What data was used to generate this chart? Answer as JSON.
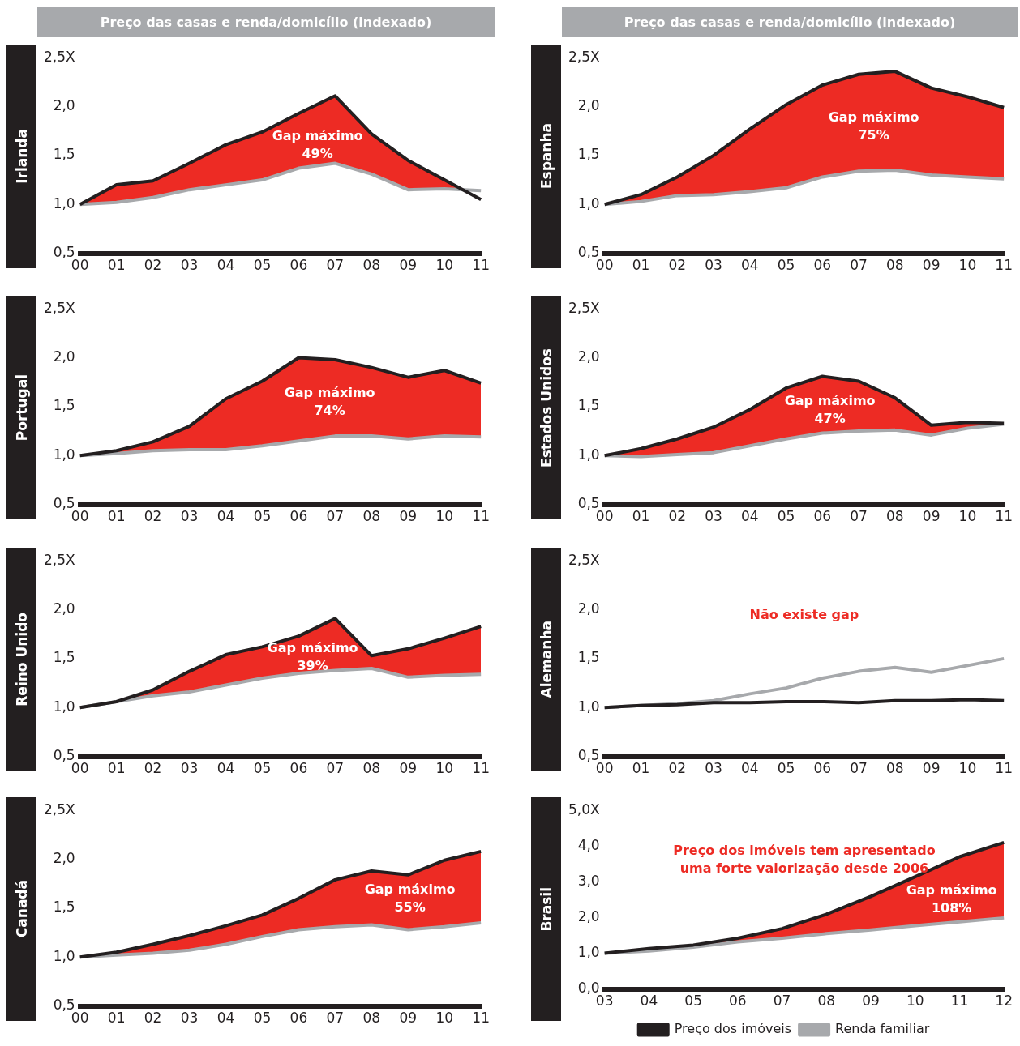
{
  "chart_data": [
    {
      "type": "line",
      "title": "Preço das casas e renda/domicílio (indexado)",
      "ylabel": "Irlanda",
      "categories": [
        "00",
        "01",
        "02",
        "03",
        "04",
        "05",
        "06",
        "07",
        "08",
        "09",
        "10",
        "11"
      ],
      "ylim": [
        0.5,
        2.5
      ],
      "yticks": [
        {
          "value": 0.5,
          "label": "0,5"
        },
        {
          "value": 1,
          "label": "1,0"
        },
        {
          "value": 1.5,
          "label": "1,5"
        },
        {
          "value": 2,
          "label": "2,0"
        },
        {
          "value": 2.5,
          "label": "2,5X"
        }
      ],
      "series": [
        {
          "type": "line",
          "color": "#231f20",
          "values": [
            1.0,
            1.2,
            1.24,
            1.42,
            1.61,
            1.74,
            1.93,
            2.11,
            1.72,
            1.45,
            1.25,
            1.05
          ],
          "lower": [
            1.0,
            1.02,
            1.07,
            1.15,
            1.2,
            1.25,
            1.37,
            1.42,
            1.31,
            1.15,
            1.16,
            1.14
          ],
          "upper": [
            1.0,
            1.2,
            1.24,
            1.42,
            1.61,
            1.74,
            1.93,
            2.11,
            1.72,
            1.45,
            1.25,
            1.05
          ]
        },
        {
          "type": "line",
          "color": "#a7a9ac",
          "values": [
            1.0,
            1.02,
            1.07,
            1.15,
            1.2,
            1.25,
            1.37,
            1.42,
            1.31,
            1.15,
            1.16,
            1.14
          ]
        }
      ],
      "annotations": [
        "Gap máximo\n49%"
      ]
    },
    {
      "type": "line",
      "title": "Preço das casas e renda/domicílio (indexado)",
      "ylabel": "Espanha",
      "categories": [
        "00",
        "01",
        "02",
        "03",
        "04",
        "05",
        "06",
        "07",
        "08",
        "09",
        "10",
        "11"
      ],
      "ylim": [
        0.5,
        2.5
      ],
      "yticks": [
        {
          "value": 0.5,
          "label": "0,5"
        },
        {
          "value": 1,
          "label": "1,0"
        },
        {
          "value": 1.5,
          "label": "1,5"
        },
        {
          "value": 2,
          "label": "2,0"
        },
        {
          "value": 2.5,
          "label": "2,5X"
        }
      ],
      "series": [
        {
          "type": "line",
          "color": "#231f20",
          "values": [
            1.0,
            1.1,
            1.28,
            1.5,
            1.77,
            2.02,
            2.22,
            2.33,
            2.36,
            2.19,
            2.1,
            1.99
          ],
          "lower": [
            1.0,
            1.03,
            1.09,
            1.1,
            1.13,
            1.17,
            1.28,
            1.34,
            1.35,
            1.3,
            1.28,
            1.26
          ],
          "upper": [
            1.0,
            1.1,
            1.28,
            1.5,
            1.77,
            2.02,
            2.22,
            2.33,
            2.36,
            2.19,
            2.1,
            1.99
          ]
        },
        {
          "type": "line",
          "color": "#a7a9ac",
          "values": [
            1.0,
            1.03,
            1.09,
            1.1,
            1.13,
            1.17,
            1.28,
            1.34,
            1.35,
            1.3,
            1.28,
            1.26
          ]
        }
      ],
      "annotations": [
        "Gap máximo\n75%"
      ]
    },
    {
      "type": "line",
      "ylabel": "Portugal",
      "categories": [
        "00",
        "01",
        "02",
        "03",
        "04",
        "05",
        "06",
        "07",
        "08",
        "09",
        "10",
        "11"
      ],
      "ylim": [
        0.5,
        2.5
      ],
      "yticks": [
        {
          "value": 0.5,
          "label": "0,5"
        },
        {
          "value": 1,
          "label": "1,0"
        },
        {
          "value": 1.5,
          "label": "1,5"
        },
        {
          "value": 2,
          "label": "2,0"
        },
        {
          "value": 2.5,
          "label": "2,5X"
        }
      ],
      "series": [
        {
          "type": "line",
          "color": "#231f20",
          "values": [
            1.0,
            1.05,
            1.14,
            1.3,
            1.58,
            1.76,
            2.0,
            1.98,
            1.9,
            1.8,
            1.87,
            1.74
          ],
          "lower": [
            1.0,
            1.02,
            1.05,
            1.06,
            1.06,
            1.1,
            1.15,
            1.2,
            1.2,
            1.17,
            1.2,
            1.19
          ],
          "upper": [
            1.0,
            1.05,
            1.14,
            1.3,
            1.58,
            1.76,
            2.0,
            1.98,
            1.9,
            1.8,
            1.87,
            1.74
          ]
        },
        {
          "type": "line",
          "color": "#a7a9ac",
          "values": [
            1.0,
            1.02,
            1.05,
            1.06,
            1.06,
            1.1,
            1.15,
            1.2,
            1.2,
            1.17,
            1.2,
            1.19
          ]
        }
      ],
      "annotations": [
        "Gap máximo\n74%"
      ]
    },
    {
      "type": "line",
      "ylabel": "Estados Unidos",
      "categories": [
        "00",
        "01",
        "02",
        "03",
        "04",
        "05",
        "06",
        "07",
        "08",
        "09",
        "10",
        "11"
      ],
      "ylim": [
        0.5,
        2.5
      ],
      "yticks": [
        {
          "value": 0.5,
          "label": "0,5"
        },
        {
          "value": 1,
          "label": "1,0"
        },
        {
          "value": 1.5,
          "label": "1,5"
        },
        {
          "value": 2,
          "label": "2,0"
        },
        {
          "value": 2.5,
          "label": "2,5X"
        }
      ],
      "series": [
        {
          "type": "line",
          "color": "#231f20",
          "values": [
            1.0,
            1.07,
            1.17,
            1.29,
            1.47,
            1.69,
            1.81,
            1.76,
            1.59,
            1.31,
            1.34,
            1.33
          ],
          "lower": [
            1.0,
            0.99,
            1.01,
            1.03,
            1.1,
            1.17,
            1.23,
            1.25,
            1.26,
            1.21,
            1.28,
            1.32
          ],
          "upper": [
            1.0,
            1.07,
            1.17,
            1.29,
            1.47,
            1.69,
            1.81,
            1.76,
            1.59,
            1.31,
            1.34,
            1.33
          ]
        },
        {
          "type": "line",
          "color": "#a7a9ac",
          "values": [
            1.0,
            0.99,
            1.01,
            1.03,
            1.1,
            1.17,
            1.23,
            1.25,
            1.26,
            1.21,
            1.28,
            1.32
          ]
        }
      ],
      "annotations": [
        "Gap máximo\n47%"
      ]
    },
    {
      "type": "line",
      "ylabel": "Reino Unido",
      "categories": [
        "00",
        "01",
        "02",
        "03",
        "04",
        "05",
        "06",
        "07",
        "08",
        "09",
        "10",
        "11"
      ],
      "ylim": [
        0.5,
        2.5
      ],
      "yticks": [
        {
          "value": 0.5,
          "label": "0,5"
        },
        {
          "value": 1,
          "label": "1,0"
        },
        {
          "value": 1.5,
          "label": "1,5"
        },
        {
          "value": 2,
          "label": "2,0"
        },
        {
          "value": 2.5,
          "label": "2,5X"
        }
      ],
      "series": [
        {
          "type": "line",
          "color": "#231f20",
          "values": [
            1.0,
            1.06,
            1.18,
            1.37,
            1.54,
            1.62,
            1.73,
            1.91,
            1.53,
            1.6,
            1.71,
            1.83
          ],
          "lower": [
            1.0,
            1.06,
            1.12,
            1.16,
            1.23,
            1.3,
            1.35,
            1.38,
            1.4,
            1.31,
            1.33,
            1.34
          ],
          "upper": [
            1.0,
            1.06,
            1.18,
            1.37,
            1.54,
            1.62,
            1.73,
            1.91,
            1.53,
            1.6,
            1.71,
            1.83
          ]
        },
        {
          "type": "line",
          "color": "#a7a9ac",
          "values": [
            1.0,
            1.06,
            1.12,
            1.16,
            1.23,
            1.3,
            1.35,
            1.38,
            1.4,
            1.31,
            1.33,
            1.34
          ]
        }
      ],
      "annotations": [
        "Gap máximo\n39%"
      ]
    },
    {
      "type": "line",
      "ylabel": "Alemanha",
      "categories": [
        "00",
        "01",
        "02",
        "03",
        "04",
        "05",
        "06",
        "07",
        "08",
        "09",
        "10",
        "11"
      ],
      "ylim": [
        0.5,
        2.5
      ],
      "yticks": [
        {
          "value": 0.5,
          "label": "0,5"
        },
        {
          "value": 1,
          "label": "1,0"
        },
        {
          "value": 1.5,
          "label": "1,5"
        },
        {
          "value": 2,
          "label": "2,0"
        },
        {
          "value": 2.5,
          "label": "2,5X"
        }
      ],
      "series": [
        {
          "type": "line",
          "color": "#231f20",
          "values": [
            1.0,
            1.02,
            1.03,
            1.05,
            1.05,
            1.06,
            1.06,
            1.05,
            1.07,
            1.07,
            1.08,
            1.07
          ]
        },
        {
          "type": "line",
          "color": "#a7a9ac",
          "values": [
            1.0,
            1.02,
            1.04,
            1.07,
            1.14,
            1.2,
            1.3,
            1.37,
            1.41,
            1.36,
            1.43,
            1.5
          ]
        }
      ],
      "annotations": [
        "Não existe gap"
      ]
    },
    {
      "type": "line",
      "ylabel": "Canadá",
      "categories": [
        "00",
        "01",
        "02",
        "03",
        "04",
        "05",
        "06",
        "07",
        "08",
        "09",
        "10",
        "11"
      ],
      "ylim": [
        0.5,
        2.5
      ],
      "yticks": [
        {
          "value": 0.5,
          "label": "0,5"
        },
        {
          "value": 1,
          "label": "1,0"
        },
        {
          "value": 1.5,
          "label": "1,5"
        },
        {
          "value": 2,
          "label": "2,0"
        },
        {
          "value": 2.5,
          "label": "2,5X"
        }
      ],
      "series": [
        {
          "type": "line",
          "color": "#231f20",
          "values": [
            1.0,
            1.05,
            1.13,
            1.22,
            1.32,
            1.43,
            1.6,
            1.79,
            1.88,
            1.84,
            1.99,
            2.08
          ],
          "lower": [
            1.0,
            1.02,
            1.04,
            1.07,
            1.13,
            1.21,
            1.28,
            1.31,
            1.33,
            1.28,
            1.31,
            1.35
          ],
          "upper": [
            1.0,
            1.05,
            1.13,
            1.22,
            1.32,
            1.43,
            1.6,
            1.79,
            1.88,
            1.84,
            1.99,
            2.08
          ]
        },
        {
          "type": "line",
          "color": "#a7a9ac",
          "values": [
            1.0,
            1.02,
            1.04,
            1.07,
            1.13,
            1.21,
            1.28,
            1.31,
            1.33,
            1.28,
            1.31,
            1.35
          ]
        }
      ],
      "annotations": [
        "Gap máximo\n55%"
      ]
    },
    {
      "type": "line",
      "ylabel": "Brasil",
      "categories": [
        "03",
        "04",
        "05",
        "06",
        "07",
        "08",
        "09",
        "10",
        "11",
        "12"
      ],
      "ylim": [
        0,
        5
      ],
      "yticks": [
        {
          "value": 0,
          "label": "0,0"
        },
        {
          "value": 1,
          "label": "1,0"
        },
        {
          "value": 2,
          "label": "2,0"
        },
        {
          "value": 3,
          "label": "3,0"
        },
        {
          "value": 4,
          "label": "4,0"
        },
        {
          "value": 5,
          "label": "5,0X"
        }
      ],
      "legend": "bottom",
      "series": [
        {
          "type": "line",
          "name": "Preço dos imóveis",
          "color": "#231f20",
          "values": [
            1.0,
            1.13,
            1.23,
            1.42,
            1.69,
            2.09,
            2.59,
            3.14,
            3.7,
            4.1
          ],
          "lower": [
            1.0,
            1.06,
            1.17,
            1.32,
            1.42,
            1.55,
            1.65,
            1.77,
            1.88,
            1.99
          ],
          "upper": [
            1.0,
            1.13,
            1.23,
            1.42,
            1.69,
            2.09,
            2.59,
            3.14,
            3.7,
            4.1
          ]
        },
        {
          "type": "line",
          "name": "Renda familiar",
          "color": "#a7a9ac",
          "values": [
            1.0,
            1.06,
            1.17,
            1.32,
            1.42,
            1.55,
            1.65,
            1.77,
            1.88,
            1.99
          ]
        }
      ],
      "annotations": [
        "Preço dos imóveis tem apresentado\numa forte valorização desde 2006",
        "Gap máximo\n108%"
      ]
    }
  ]
}
